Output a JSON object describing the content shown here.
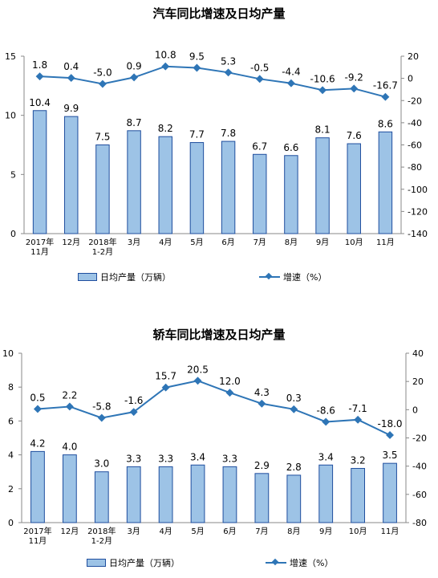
{
  "colors": {
    "bar_fill": "#9DC3E6",
    "bar_stroke": "#1F4E9E",
    "line": "#2E75B6"
  },
  "chart_data": [
    {
      "type": "bar",
      "title": "汽车同比增速及日均产量",
      "categories": [
        "2017年\n11月",
        "12月",
        "2018年\n1-2月",
        "3月",
        "4月",
        "5月",
        "6月",
        "7月",
        "8月",
        "9月",
        "10月",
        "11月"
      ],
      "series": [
        {
          "name": "日均产量（万辆）",
          "type": "bar",
          "axis": "left",
          "values": [
            10.4,
            9.9,
            7.5,
            8.7,
            8.2,
            7.7,
            7.8,
            6.7,
            6.6,
            8.1,
            7.6,
            8.6
          ]
        },
        {
          "name": "增速（%）",
          "type": "line",
          "axis": "right",
          "values": [
            1.8,
            0.4,
            -5.0,
            0.9,
            10.8,
            9.5,
            5.3,
            -0.5,
            -4.4,
            -10.6,
            -9.2,
            -16.7
          ]
        }
      ],
      "left_axis": {
        "min": 0,
        "max": 15,
        "ticks": [
          0,
          5,
          10,
          15
        ]
      },
      "right_axis": {
        "min": -140,
        "max": 20,
        "ticks": [
          20,
          0,
          -20,
          -40,
          -60,
          -80,
          -100,
          -120,
          -140
        ]
      },
      "legend": "bottom"
    },
    {
      "type": "bar",
      "title": "轿车同比增速及日均产量",
      "categories": [
        "2017年\n11月",
        "12月",
        "2018年\n1-2月",
        "3月",
        "4月",
        "5月",
        "6月",
        "7月",
        "8月",
        "9月",
        "10月",
        "11月"
      ],
      "series": [
        {
          "name": "日均产量（万辆）",
          "type": "bar",
          "axis": "left",
          "values": [
            4.2,
            4.0,
            3.0,
            3.3,
            3.3,
            3.4,
            3.3,
            2.9,
            2.8,
            3.4,
            3.2,
            3.5
          ]
        },
        {
          "name": "增速（%）",
          "type": "line",
          "axis": "right",
          "values": [
            0.5,
            2.2,
            -5.8,
            -1.6,
            15.7,
            20.5,
            12.0,
            4.3,
            0.3,
            -8.6,
            -7.1,
            -18.0
          ]
        }
      ],
      "left_axis": {
        "min": 0,
        "max": 10,
        "ticks": [
          0,
          2,
          4,
          6,
          8,
          10
        ]
      },
      "right_axis": {
        "min": -80,
        "max": 40,
        "ticks": [
          40,
          20,
          0,
          -20,
          -40,
          -60,
          -80
        ]
      },
      "legend": "bottom"
    }
  ]
}
